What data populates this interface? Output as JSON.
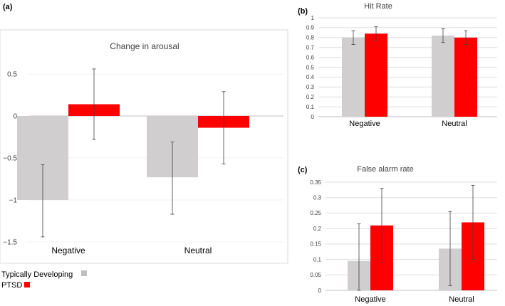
{
  "panel_labels": {
    "a": "(a)",
    "b": "(b)",
    "c": "(c)"
  },
  "legend": [
    {
      "label": "Typically Developing",
      "color": "#bfbfbf"
    },
    {
      "label": "PTSD",
      "color": "#ff0000"
    }
  ],
  "chart_data": [
    {
      "id": "a",
      "type": "bar",
      "title": "Change in arousal",
      "categories": [
        "Negative",
        "Neutral"
      ],
      "series": [
        {
          "name": "Typically Developing",
          "color": "#d0cece",
          "values": [
            -1.0,
            -0.73
          ],
          "err_low": [
            -1.44,
            -1.17
          ],
          "err_high": [
            -0.58,
            -0.31
          ]
        },
        {
          "name": "PTSD",
          "color": "#ff0000",
          "values": [
            0.14,
            -0.14
          ],
          "err_low": [
            -0.28,
            -0.57
          ],
          "err_high": [
            0.56,
            0.29
          ]
        }
      ],
      "ylim": [
        -1.5,
        0.5
      ],
      "yticks": [
        0.5,
        0,
        -0.5,
        -1,
        -1.5
      ],
      "ytick_labels": [
        "0.5",
        "0",
        "−0.5",
        "−1",
        "−1.5"
      ],
      "grid": true,
      "xlabel": "",
      "ylabel": ""
    },
    {
      "id": "b",
      "type": "bar",
      "title": "Hit Rate",
      "categories": [
        "Negative",
        "Neutral"
      ],
      "series": [
        {
          "name": "Typically Developing",
          "color": "#d0cece",
          "values": [
            0.8,
            0.82
          ],
          "err_low": [
            0.73,
            0.75
          ],
          "err_high": [
            0.87,
            0.89
          ]
        },
        {
          "name": "PTSD",
          "color": "#ff0000",
          "values": [
            0.84,
            0.8
          ],
          "err_low": [
            0.77,
            0.73
          ],
          "err_high": [
            0.91,
            0.87
          ]
        }
      ],
      "ylim": [
        0,
        1
      ],
      "yticks": [
        0,
        0.1,
        0.2,
        0.3,
        0.4,
        0.5,
        0.6,
        0.7,
        0.8,
        0.9,
        1
      ],
      "ytick_labels": [
        "0",
        "0.1",
        "0.2",
        "0.3",
        "0.4",
        "0.5",
        "0.6",
        "0.7",
        "0.8",
        "0.9",
        "1"
      ],
      "grid": true,
      "xlabel": "",
      "ylabel": ""
    },
    {
      "id": "c",
      "type": "bar",
      "title": "False alarm rate",
      "categories": [
        "Negative",
        "Neutral"
      ],
      "series": [
        {
          "name": "Typically Developing",
          "color": "#d0cece",
          "values": [
            0.095,
            0.135
          ],
          "err_low": [
            0.0,
            0.015
          ],
          "err_high": [
            0.215,
            0.255
          ]
        },
        {
          "name": "PTSD",
          "color": "#ff0000",
          "values": [
            0.21,
            0.22
          ],
          "err_low": [
            0.09,
            0.1
          ],
          "err_high": [
            0.33,
            0.34
          ]
        }
      ],
      "ylim": [
        0,
        0.35
      ],
      "yticks": [
        0,
        0.05,
        0.1,
        0.15,
        0.2,
        0.25,
        0.3,
        0.35
      ],
      "ytick_labels": [
        "0",
        "0.05",
        "0.1",
        "0.15",
        "0.2",
        "0.25",
        "0.3",
        "0.35"
      ],
      "grid": true,
      "xlabel": "",
      "ylabel": ""
    }
  ]
}
